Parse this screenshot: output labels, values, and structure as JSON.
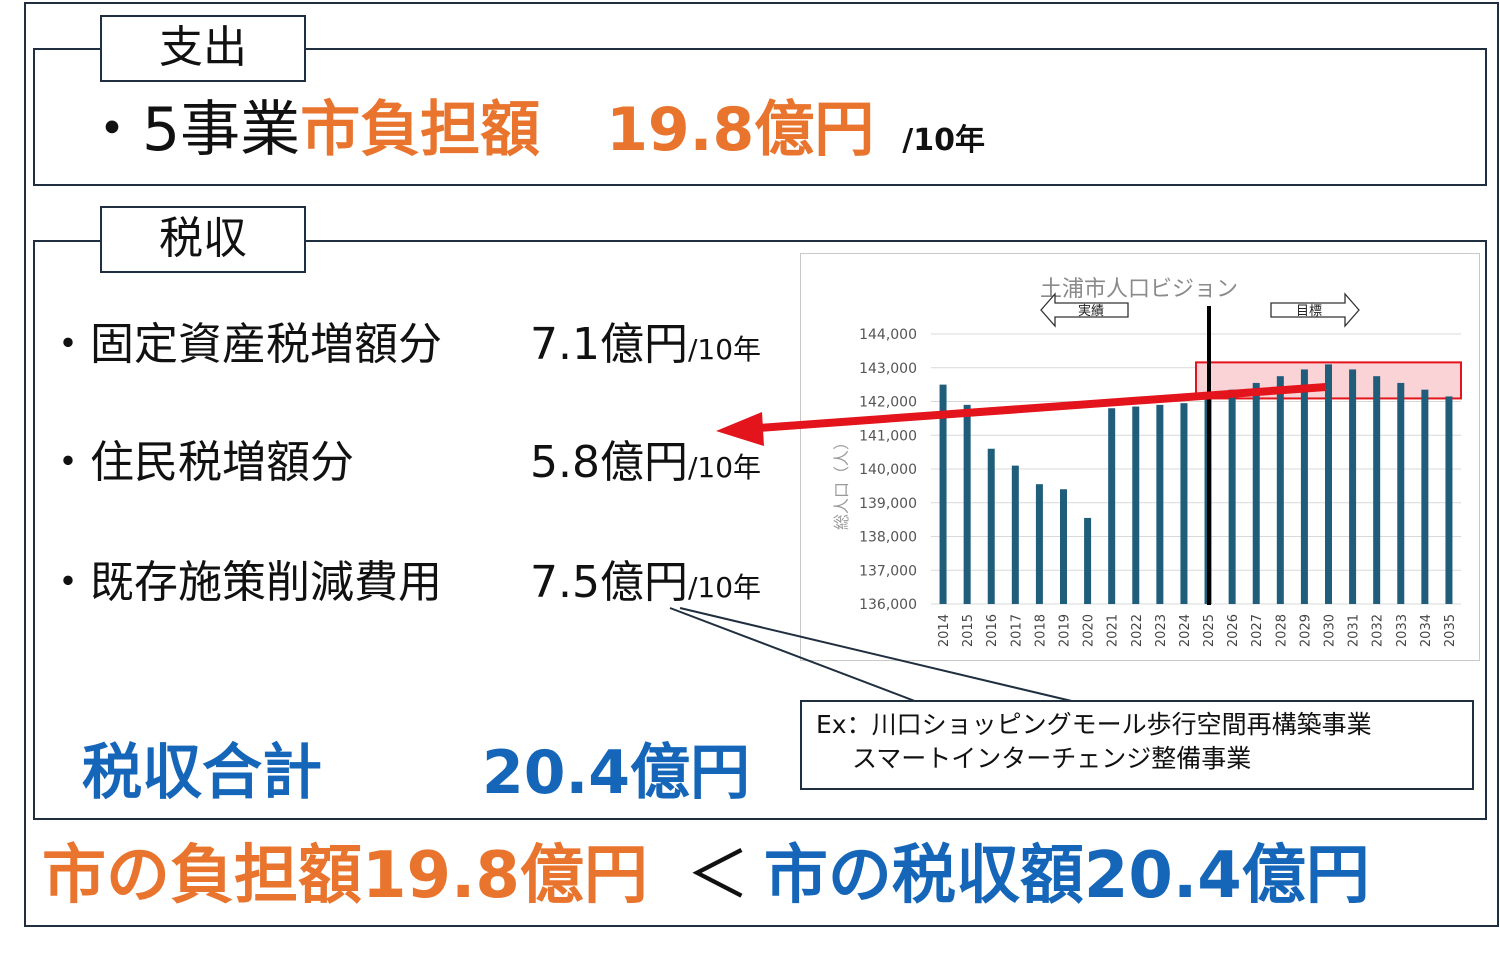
{
  "expense": {
    "tab_label": "支出",
    "bullet": "・",
    "prefix": "5事業",
    "label": "市負担額",
    "amount": "19.8億円",
    "unit": "/10年"
  },
  "tax": {
    "tab_label": "税収",
    "items": [
      {
        "bullet": "・",
        "label": "固定資産税増額分",
        "amount": "7.1億円",
        "unit": "/10年"
      },
      {
        "bullet": "・",
        "label": "住民税増額分",
        "amount": "5.8億円",
        "unit": "/10年"
      },
      {
        "bullet": "・",
        "label": "既存施策削減費用",
        "amount": "7.5億円",
        "unit": "/10年"
      }
    ],
    "total_label": "税収合計",
    "total_amount": "20.4億円"
  },
  "callout": {
    "line1": "Ex：川口ショッピングモール歩行空間再構築事業",
    "line2": "スマートインターチェンジ整備事業"
  },
  "conclusion": {
    "left": "市の負担額19.8億円",
    "operator": "＜",
    "right": "市の税収額20.4億円"
  },
  "colors": {
    "orange": "#e8742e",
    "blue": "#1566b8",
    "bar": "#1f5d7a",
    "highlight_fill": "#f9d3d5",
    "highlight_border": "#e3141b",
    "arrow": "#e3141b"
  },
  "chart_data": {
    "type": "bar",
    "title": "土浦市人口ビジョン",
    "ylabel": "総人口（人）",
    "ylim": [
      136000,
      144000
    ],
    "yticks": [
      136000,
      137000,
      138000,
      139000,
      140000,
      141000,
      142000,
      143000,
      144000
    ],
    "ytick_labels": [
      "136,000",
      "137,000",
      "138,000",
      "139,000",
      "140,000",
      "141,000",
      "142,000",
      "143,000",
      "144,000"
    ],
    "categories": [
      "2014",
      "2015",
      "2016",
      "2017",
      "2018",
      "2019",
      "2020",
      "2021",
      "2022",
      "2023",
      "2024",
      "2025",
      "2026",
      "2027",
      "2028",
      "2029",
      "2030",
      "2031",
      "2032",
      "2033",
      "2034",
      "2035"
    ],
    "values": [
      142500,
      141900,
      140600,
      140100,
      139550,
      139400,
      138550,
      141800,
      141850,
      141900,
      141950,
      142200,
      142350,
      142550,
      142750,
      142950,
      143100,
      142950,
      142750,
      142550,
      142350,
      142150
    ],
    "grid": true,
    "annotations": {
      "actual_label": "実績",
      "target_label": "目標",
      "divider_year": "2025",
      "highlight_range": [
        2025,
        2035
      ]
    }
  }
}
